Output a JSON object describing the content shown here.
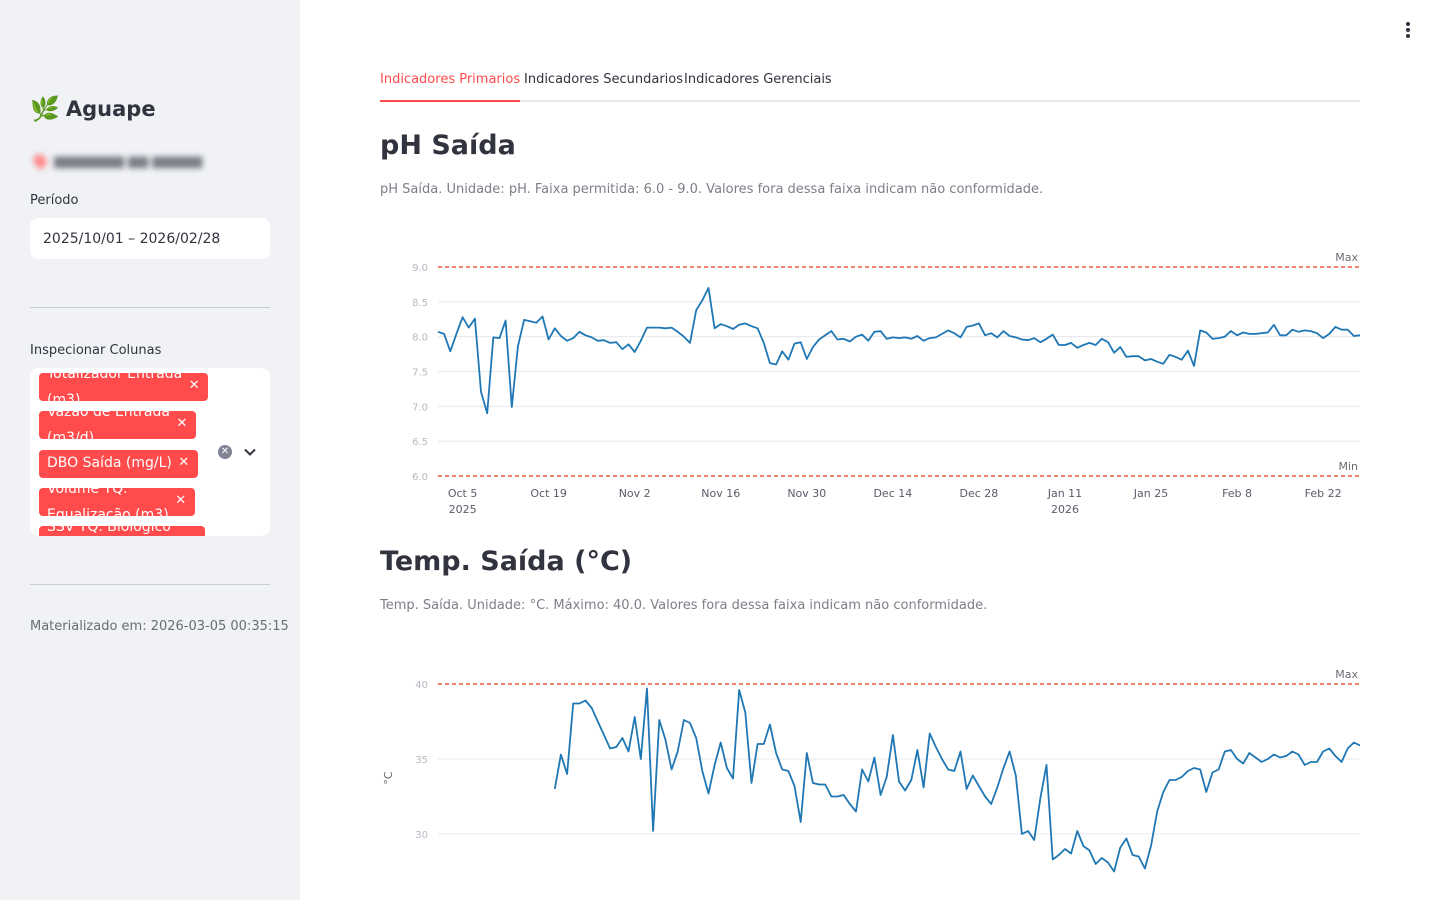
{
  "sidebar": {
    "brand": "Aguape",
    "brand_icon": "leaf-icon",
    "period_label": "Período",
    "period_value": "2025/10/01 – 2026/02/28",
    "inspect_label": "Inspecionar Colunas",
    "selected_columns": [
      {
        "line1": "Totalizador Entrada",
        "line2": "(m3)"
      },
      {
        "line1": "Vazão de Entrada",
        "line2": "(m3/d)"
      },
      {
        "line1": "DBO Saída (mg/L)",
        "line2": ""
      },
      {
        "line1": "Volume TQ.",
        "line2": "Equalização (m3)"
      },
      {
        "line1": "SSV TQ. Biológico",
        "line2": ""
      }
    ],
    "materialized": "Materializado em: 2026-03-05 00:35:15"
  },
  "tabs": [
    {
      "label": "Indicadores Primarios",
      "active": true
    },
    {
      "label": "Indicadores Secundarios",
      "active": false
    },
    {
      "label": "Indicadores Gerenciais",
      "active": false
    }
  ],
  "sections": [
    {
      "title": "pH Saída",
      "caption": "pH Saída. Unidade: pH. Faixa permitida: 6.0 - 9.0. Valores fora dessa faixa indicam não conformidade."
    },
    {
      "title": "Temp. Saída (°C)",
      "caption": "Temp. Saída. Unidade: °C. Máximo: 40.0. Valores fora dessa faixa indicam não conformidade."
    }
  ],
  "colors": {
    "accent": "#ff4b4b",
    "line": "#1f77b4",
    "limit": "#e8583f",
    "sidebar_bg": "#f0f2f6"
  },
  "chart_data": [
    {
      "type": "line",
      "x_start": "2025-10-01",
      "x_end": "2026-02-28",
      "x_ticks": [
        "Oct 5",
        "Oct 19",
        "Nov 2",
        "Nov 16",
        "Nov 30",
        "Dec 14",
        "Dec 28",
        "Jan 11",
        "Jan 25",
        "Feb 8",
        "Feb 22"
      ],
      "x_ticks_year": {
        "Oct 5": "2025",
        "Jan 11": "2026"
      },
      "ylim": [
        6.0,
        9.0
      ],
      "y_ticks": [
        6.0,
        6.5,
        7.0,
        7.5,
        8.0,
        8.5,
        9.0
      ],
      "limits": [
        {
          "label": "Max",
          "value": 9.0
        },
        {
          "label": "Min",
          "value": 6.0
        }
      ],
      "series": [
        {
          "values": [
            8.07,
            8.04,
            7.79,
            8.04,
            8.28,
            8.13,
            8.26,
            7.21,
            6.9,
            7.99,
            7.98,
            8.23,
            6.99,
            7.86,
            8.24,
            8.22,
            8.2,
            8.29,
            7.96,
            8.12,
            8.01,
            7.94,
            7.98,
            8.07,
            8.02,
            7.99,
            7.94,
            7.95,
            7.91,
            7.92,
            7.82,
            7.89,
            7.78,
            7.94,
            8.13,
            8.13,
            8.13,
            8.12,
            8.13,
            8.07,
            8.0,
            7.91,
            8.38,
            8.52,
            8.7,
            8.12,
            8.18,
            8.15,
            8.11,
            8.17,
            8.19,
            8.15,
            8.12,
            7.91,
            7.62,
            7.6,
            7.79,
            7.67,
            7.9,
            7.92,
            7.68,
            7.85,
            7.96,
            8.02,
            8.08,
            7.96,
            7.97,
            7.93,
            8.0,
            8.03,
            7.94,
            8.07,
            8.08,
            7.97,
            7.99,
            7.98,
            7.99,
            7.97,
            8.01,
            7.94,
            7.98,
            7.99,
            8.04,
            8.09,
            8.05,
            7.99,
            8.14,
            8.16,
            8.19,
            8.02,
            8.05,
            7.99,
            8.08,
            8.01,
            7.99,
            7.96,
            7.95,
            7.98,
            7.92,
            7.97,
            8.03,
            7.88,
            7.88,
            7.91,
            7.84,
            7.88,
            7.91,
            7.88,
            7.97,
            7.92,
            7.77,
            7.85,
            7.71,
            7.72,
            7.72,
            7.66,
            7.68,
            7.64,
            7.61,
            7.74,
            7.71,
            7.67,
            7.8,
            7.58,
            8.09,
            8.06,
            7.97,
            7.98,
            8.0,
            8.08,
            8.02,
            8.06,
            8.04,
            8.04,
            8.05,
            8.06,
            8.17,
            8.02,
            8.02,
            8.1,
            8.07,
            8.09,
            8.08,
            8.05,
            7.98,
            8.04,
            8.14,
            8.1,
            8.1,
            8.01,
            8.02
          ]
        }
      ]
    },
    {
      "type": "line",
      "x_start": "2025-10-01",
      "x_end": "2026-02-28",
      "ylabel": "°C",
      "limits": [
        {
          "label": "Max",
          "value": 40.0
        }
      ],
      "series": [
        {
          "values": [
            33.0,
            35.3,
            34.0,
            38.7,
            38.7,
            38.9,
            38.4,
            37.5,
            36.6,
            35.7,
            35.8,
            36.4,
            35.5,
            37.8,
            35.0,
            39.7,
            30.2,
            37.6,
            36.3,
            34.3,
            35.5,
            37.6,
            37.4,
            36.4,
            34.2,
            32.7,
            34.6,
            36.1,
            34.4,
            33.7,
            39.6,
            38.1,
            33.4,
            36.0,
            36.0,
            37.3,
            35.4,
            34.3,
            34.2,
            33.2,
            30.8,
            35.4,
            33.4,
            33.3,
            33.3,
            32.5,
            32.5,
            32.6,
            32.0,
            31.5,
            34.3,
            33.5,
            35.1,
            32.6,
            33.8,
            36.6,
            33.5,
            32.9,
            33.6,
            35.6,
            33.1,
            36.7,
            35.8,
            35.0,
            34.3,
            34.2,
            35.5,
            33.0,
            33.9,
            33.2,
            32.5,
            32.0,
            33.1,
            34.4,
            35.5,
            33.9,
            30.0,
            30.2,
            29.6,
            32.4,
            34.6,
            28.3,
            28.6,
            29.0,
            28.7,
            30.2,
            29.2,
            28.9,
            28.0,
            28.4,
            28.1,
            27.5,
            29.1,
            29.7,
            28.6,
            28.5,
            27.7,
            29.2,
            31.5,
            32.8,
            33.6,
            33.6,
            33.8,
            34.2,
            34.4,
            34.3,
            32.8,
            34.1,
            34.3,
            35.5,
            35.6,
            35.0,
            34.7,
            35.4,
            35.1,
            34.8,
            35.0,
            35.3,
            35.1,
            35.2,
            35.5,
            35.3,
            34.6,
            34.8,
            34.8,
            35.5,
            35.7,
            35.2,
            34.8,
            35.7,
            36.1,
            35.9
          ]
        }
      ]
    }
  ]
}
